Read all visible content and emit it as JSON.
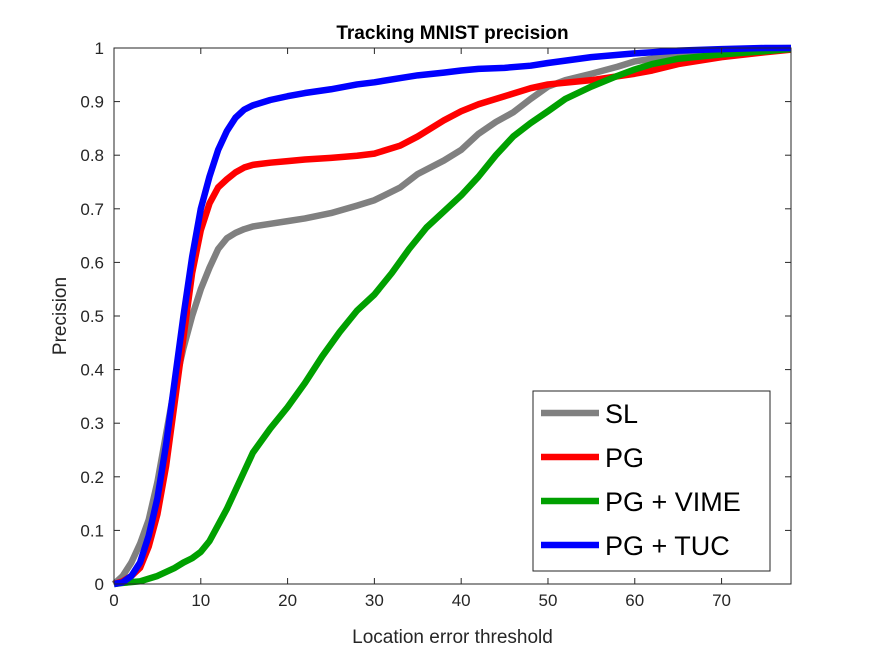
{
  "chart_data": {
    "type": "line",
    "title": "Tracking MNIST precision",
    "xlabel": "Location error threshold",
    "ylabel": "Precision",
    "xlim": [
      0,
      78
    ],
    "ylim": [
      0,
      1
    ],
    "xticks": [
      0,
      10,
      20,
      30,
      40,
      50,
      60,
      70
    ],
    "yticks": [
      0,
      0.1,
      0.2,
      0.3,
      0.4,
      0.5,
      0.6,
      0.7,
      0.8,
      0.9,
      1
    ],
    "ytick_labels": [
      "0",
      "0.1",
      "0.2",
      "0.3",
      "0.4",
      "0.5",
      "0.6",
      "0.7",
      "0.8",
      "0.9",
      "1"
    ],
    "grid": false,
    "legend_position": "bottom-right",
    "series": [
      {
        "name": "SL",
        "color": "#808080",
        "points": [
          [
            0,
            0
          ],
          [
            1,
            0.015
          ],
          [
            2,
            0.04
          ],
          [
            3,
            0.075
          ],
          [
            4,
            0.12
          ],
          [
            5,
            0.19
          ],
          [
            6,
            0.28
          ],
          [
            7,
            0.37
          ],
          [
            8,
            0.44
          ],
          [
            9,
            0.5
          ],
          [
            10,
            0.55
          ],
          [
            11,
            0.59
          ],
          [
            12,
            0.625
          ],
          [
            13,
            0.645
          ],
          [
            14,
            0.655
          ],
          [
            15,
            0.662
          ],
          [
            16,
            0.667
          ],
          [
            18,
            0.672
          ],
          [
            20,
            0.677
          ],
          [
            22,
            0.682
          ],
          [
            25,
            0.692
          ],
          [
            28,
            0.706
          ],
          [
            30,
            0.716
          ],
          [
            33,
            0.74
          ],
          [
            35,
            0.765
          ],
          [
            38,
            0.79
          ],
          [
            40,
            0.81
          ],
          [
            42,
            0.84
          ],
          [
            44,
            0.862
          ],
          [
            46,
            0.88
          ],
          [
            48,
            0.905
          ],
          [
            50,
            0.928
          ],
          [
            52,
            0.94
          ],
          [
            55,
            0.952
          ],
          [
            58,
            0.965
          ],
          [
            60,
            0.975
          ],
          [
            65,
            0.988
          ],
          [
            70,
            0.996
          ],
          [
            75,
            0.999
          ],
          [
            78,
            1
          ]
        ]
      },
      {
        "name": "PG",
        "color": "#ff0000",
        "points": [
          [
            0,
            0
          ],
          [
            1,
            0.005
          ],
          [
            2,
            0.015
          ],
          [
            3,
            0.03
          ],
          [
            4,
            0.07
          ],
          [
            5,
            0.13
          ],
          [
            6,
            0.22
          ],
          [
            7,
            0.34
          ],
          [
            8,
            0.46
          ],
          [
            9,
            0.58
          ],
          [
            10,
            0.66
          ],
          [
            11,
            0.71
          ],
          [
            12,
            0.74
          ],
          [
            13,
            0.755
          ],
          [
            14,
            0.768
          ],
          [
            15,
            0.777
          ],
          [
            16,
            0.782
          ],
          [
            18,
            0.786
          ],
          [
            20,
            0.789
          ],
          [
            22,
            0.792
          ],
          [
            25,
            0.795
          ],
          [
            28,
            0.799
          ],
          [
            30,
            0.803
          ],
          [
            33,
            0.818
          ],
          [
            35,
            0.835
          ],
          [
            38,
            0.865
          ],
          [
            40,
            0.882
          ],
          [
            42,
            0.895
          ],
          [
            45,
            0.91
          ],
          [
            48,
            0.925
          ],
          [
            50,
            0.932
          ],
          [
            55,
            0.94
          ],
          [
            60,
            0.952
          ],
          [
            62,
            0.958
          ],
          [
            65,
            0.97
          ],
          [
            70,
            0.983
          ],
          [
            75,
            0.992
          ],
          [
            78,
            0.997
          ]
        ]
      },
      {
        "name": "PG + VIME",
        "color": "#00a000",
        "points": [
          [
            0,
            0
          ],
          [
            1,
            0.002
          ],
          [
            3,
            0.005
          ],
          [
            5,
            0.015
          ],
          [
            7,
            0.03
          ],
          [
            8,
            0.04
          ],
          [
            9,
            0.048
          ],
          [
            10,
            0.06
          ],
          [
            11,
            0.08
          ],
          [
            12,
            0.11
          ],
          [
            13,
            0.14
          ],
          [
            14,
            0.175
          ],
          [
            15,
            0.21
          ],
          [
            16,
            0.245
          ],
          [
            18,
            0.29
          ],
          [
            20,
            0.33
          ],
          [
            22,
            0.375
          ],
          [
            24,
            0.425
          ],
          [
            26,
            0.47
          ],
          [
            28,
            0.51
          ],
          [
            30,
            0.54
          ],
          [
            32,
            0.58
          ],
          [
            34,
            0.625
          ],
          [
            36,
            0.665
          ],
          [
            38,
            0.695
          ],
          [
            40,
            0.725
          ],
          [
            42,
            0.76
          ],
          [
            44,
            0.8
          ],
          [
            46,
            0.835
          ],
          [
            48,
            0.86
          ],
          [
            50,
            0.882
          ],
          [
            52,
            0.905
          ],
          [
            55,
            0.928
          ],
          [
            58,
            0.948
          ],
          [
            60,
            0.96
          ],
          [
            62,
            0.97
          ],
          [
            65,
            0.98
          ],
          [
            70,
            0.988
          ],
          [
            75,
            0.994
          ],
          [
            78,
            0.998
          ]
        ]
      },
      {
        "name": "PG + TUC",
        "color": "#0000ff",
        "points": [
          [
            0,
            0
          ],
          [
            1,
            0.003
          ],
          [
            2,
            0.015
          ],
          [
            3,
            0.04
          ],
          [
            4,
            0.09
          ],
          [
            5,
            0.16
          ],
          [
            6,
            0.26
          ],
          [
            7,
            0.38
          ],
          [
            8,
            0.5
          ],
          [
            9,
            0.61
          ],
          [
            10,
            0.7
          ],
          [
            11,
            0.76
          ],
          [
            12,
            0.81
          ],
          [
            13,
            0.845
          ],
          [
            14,
            0.87
          ],
          [
            15,
            0.885
          ],
          [
            16,
            0.893
          ],
          [
            18,
            0.903
          ],
          [
            20,
            0.91
          ],
          [
            22,
            0.916
          ],
          [
            25,
            0.923
          ],
          [
            28,
            0.932
          ],
          [
            30,
            0.936
          ],
          [
            33,
            0.944
          ],
          [
            35,
            0.949
          ],
          [
            38,
            0.954
          ],
          [
            40,
            0.958
          ],
          [
            42,
            0.961
          ],
          [
            45,
            0.963
          ],
          [
            48,
            0.967
          ],
          [
            50,
            0.972
          ],
          [
            55,
            0.983
          ],
          [
            60,
            0.99
          ],
          [
            65,
            0.995
          ],
          [
            70,
            0.998
          ],
          [
            75,
            1
          ],
          [
            78,
            1
          ]
        ]
      }
    ]
  }
}
